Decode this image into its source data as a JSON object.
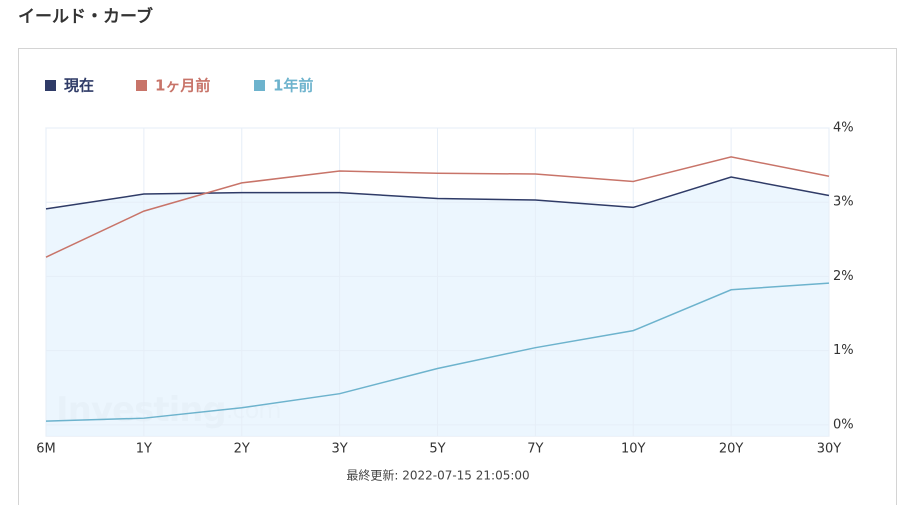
{
  "page_title": "イールド・カーブ",
  "chart_data": {
    "type": "line",
    "categories": [
      "6M",
      "1Y",
      "2Y",
      "3Y",
      "5Y",
      "7Y",
      "10Y",
      "20Y",
      "30Y"
    ],
    "series": [
      {
        "name": "現在",
        "color": "#2f3b67",
        "area_color": "#eaf5fe",
        "values": [
          2.91,
          3.11,
          3.13,
          3.13,
          3.05,
          3.03,
          2.93,
          3.34,
          3.09
        ]
      },
      {
        "name": "1ヶ月前",
        "color": "#c87469",
        "values": [
          2.26,
          2.88,
          3.26,
          3.42,
          3.39,
          3.38,
          3.28,
          3.61,
          3.35
        ]
      },
      {
        "name": "1年前",
        "color": "#6db3cd",
        "values": [
          0.05,
          0.09,
          0.23,
          0.42,
          0.76,
          1.04,
          1.27,
          1.82,
          1.91
        ]
      }
    ],
    "ylim": [
      -0.15,
      4
    ],
    "yticks": [
      {
        "value": 0,
        "label": "0%"
      },
      {
        "value": 1,
        "label": "1%"
      },
      {
        "value": 2,
        "label": "2%"
      },
      {
        "value": 3,
        "label": "3%"
      },
      {
        "value": 4,
        "label": "4%"
      }
    ],
    "grid": true,
    "watermark": {
      "name": "Investing",
      "suffix": ".com"
    },
    "footnote": "最終更新: 2022-07-15 21:05:00"
  }
}
